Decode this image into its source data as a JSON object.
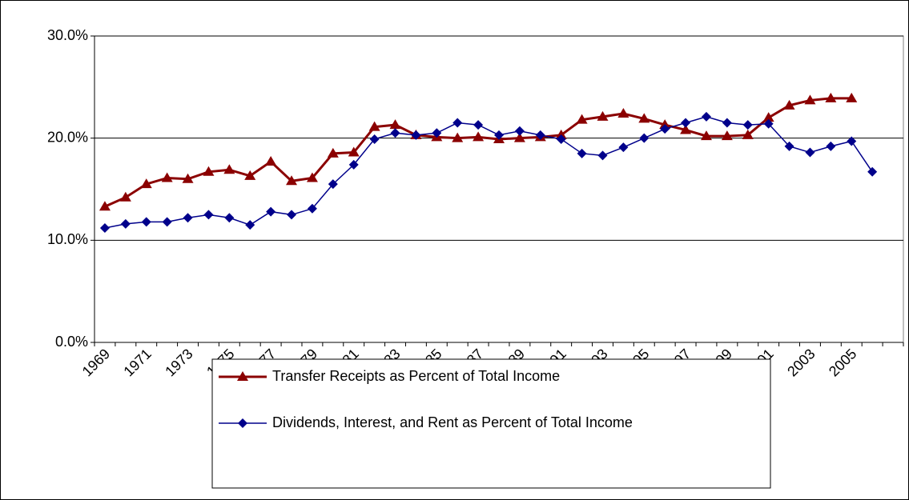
{
  "chart_data": {
    "type": "line",
    "categories": [
      "1969",
      null,
      "1971",
      null,
      "1973",
      null,
      "1975",
      null,
      "1977",
      null,
      "1979",
      null,
      "1981",
      null,
      "1983",
      null,
      "1985",
      null,
      "1987",
      null,
      "1989",
      null,
      "1991",
      null,
      "1993",
      null,
      "1995",
      null,
      "1997",
      null,
      "1999",
      null,
      "2001",
      null,
      "2003",
      null,
      "2005",
      null,
      null
    ],
    "series": [
      {
        "name": "Transfer Receipts as Percent of Total Income",
        "color": "#8b0000",
        "marker": "triangle",
        "values": [
          13.3,
          14.2,
          15.5,
          16.1,
          16.0,
          16.7,
          16.9,
          16.3,
          17.7,
          15.8,
          16.1,
          18.5,
          18.6,
          21.1,
          21.3,
          20.3,
          20.1,
          20.0,
          20.1,
          19.9,
          20.0,
          20.1,
          20.3,
          21.8,
          22.1,
          22.4,
          21.9,
          21.3,
          20.8,
          20.2,
          20.2,
          20.3,
          22.0,
          23.2,
          23.7,
          23.9,
          23.9,
          null,
          null
        ]
      },
      {
        "name": "Dividends, Interest, and Rent as Percent of Total Income",
        "color": "#00008b",
        "marker": "diamond",
        "values": [
          11.2,
          11.6,
          11.8,
          11.8,
          12.2,
          12.5,
          12.2,
          11.5,
          12.8,
          12.5,
          13.1,
          15.5,
          17.4,
          19.9,
          20.5,
          20.3,
          20.5,
          21.5,
          21.3,
          20.3,
          20.7,
          20.3,
          19.9,
          18.5,
          18.3,
          19.1,
          20.0,
          20.9,
          21.5,
          22.1,
          21.5,
          21.3,
          21.4,
          19.2,
          18.6,
          19.2,
          19.7,
          16.7,
          null
        ]
      }
    ],
    "ylim": [
      0,
      30
    ],
    "yticks": [
      {
        "value": 0,
        "label": "0.0%"
      },
      {
        "value": 10,
        "label": "10.0%"
      },
      {
        "value": 20,
        "label": "20.0%"
      },
      {
        "value": 30,
        "label": "30.0%"
      }
    ],
    "grid": true,
    "legend": "bottom"
  }
}
